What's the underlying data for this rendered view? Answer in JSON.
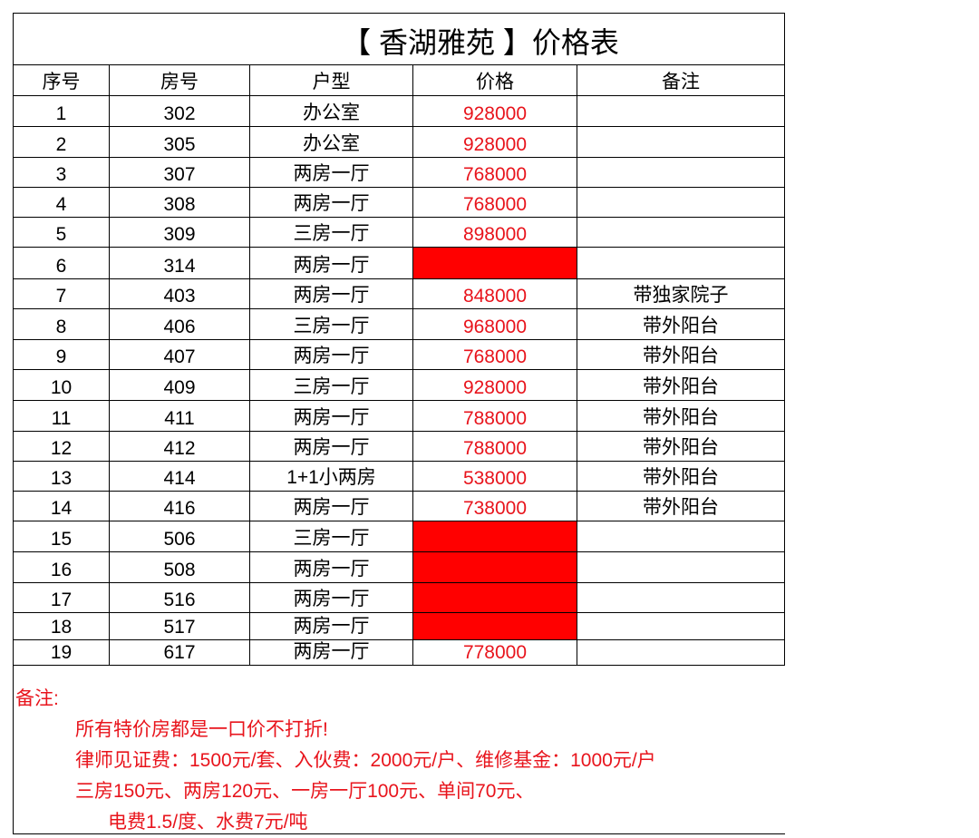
{
  "title": "【 香湖雅苑 】价格表",
  "columns": [
    "序号",
    "房号",
    "户型",
    "价格",
    "备注"
  ],
  "price_color": "#e8141c",
  "empty_price_fill": "#ff0000",
  "rows": [
    {
      "no": "1",
      "room": "302",
      "type": "办公室",
      "price": "928000",
      "note": ""
    },
    {
      "no": "2",
      "room": "305",
      "type": "办公室",
      "price": "928000",
      "note": ""
    },
    {
      "no": "3",
      "room": "307",
      "type": "两房一厅",
      "price": "768000",
      "note": ""
    },
    {
      "no": "4",
      "room": "308",
      "type": "两房一厅",
      "price": "768000",
      "note": ""
    },
    {
      "no": "5",
      "room": "309",
      "type": "三房一厅",
      "price": "898000",
      "note": ""
    },
    {
      "no": "6",
      "room": "314",
      "type": "两房一厅",
      "price": "",
      "note": "",
      "red_fill": true
    },
    {
      "no": "7",
      "room": "403",
      "type": "两房一厅",
      "price": "848000",
      "note": "带独家院子"
    },
    {
      "no": "8",
      "room": "406",
      "type": "三房一厅",
      "price": "968000",
      "note": "带外阳台"
    },
    {
      "no": "9",
      "room": "407",
      "type": "两房一厅",
      "price": "768000",
      "note": "带外阳台"
    },
    {
      "no": "10",
      "room": "409",
      "type": "三房一厅",
      "price": "928000",
      "note": "带外阳台"
    },
    {
      "no": "11",
      "room": "411",
      "type": "两房一厅",
      "price": "788000",
      "note": "带外阳台"
    },
    {
      "no": "12",
      "room": "412",
      "type": "两房一厅",
      "price": "788000",
      "note": "带外阳台"
    },
    {
      "no": "13",
      "room": "414",
      "type": "1+1小两房",
      "price": "538000",
      "note": "带外阳台"
    },
    {
      "no": "14",
      "room": "416",
      "type": "两房一厅",
      "price": "738000",
      "note": "带外阳台"
    },
    {
      "no": "15",
      "room": "506",
      "type": "三房一厅",
      "price": "",
      "note": "",
      "red_fill": true
    },
    {
      "no": "16",
      "room": "508",
      "type": "两房一厅",
      "price": "",
      "note": "",
      "red_fill": true
    },
    {
      "no": "17",
      "room": "516",
      "type": "两房一厅",
      "price": "",
      "note": "",
      "red_fill": true
    },
    {
      "no": "18",
      "room": "517",
      "type": "两房一厅",
      "price": "",
      "note": "",
      "red_fill": true
    },
    {
      "no": "19",
      "room": "617",
      "type": "两房一厅",
      "price": "778000",
      "note": ""
    }
  ],
  "notes": {
    "heading": "备注:",
    "lines": [
      "所有特价房都是一口价不打折!",
      "律师见证费：1500元/套、入伙费：2000元/户、维修基金：1000元/户",
      "三房150元、两房120元、一房一厅100元、单间70元、",
      "电费1.5/度、水费7元/吨"
    ]
  }
}
